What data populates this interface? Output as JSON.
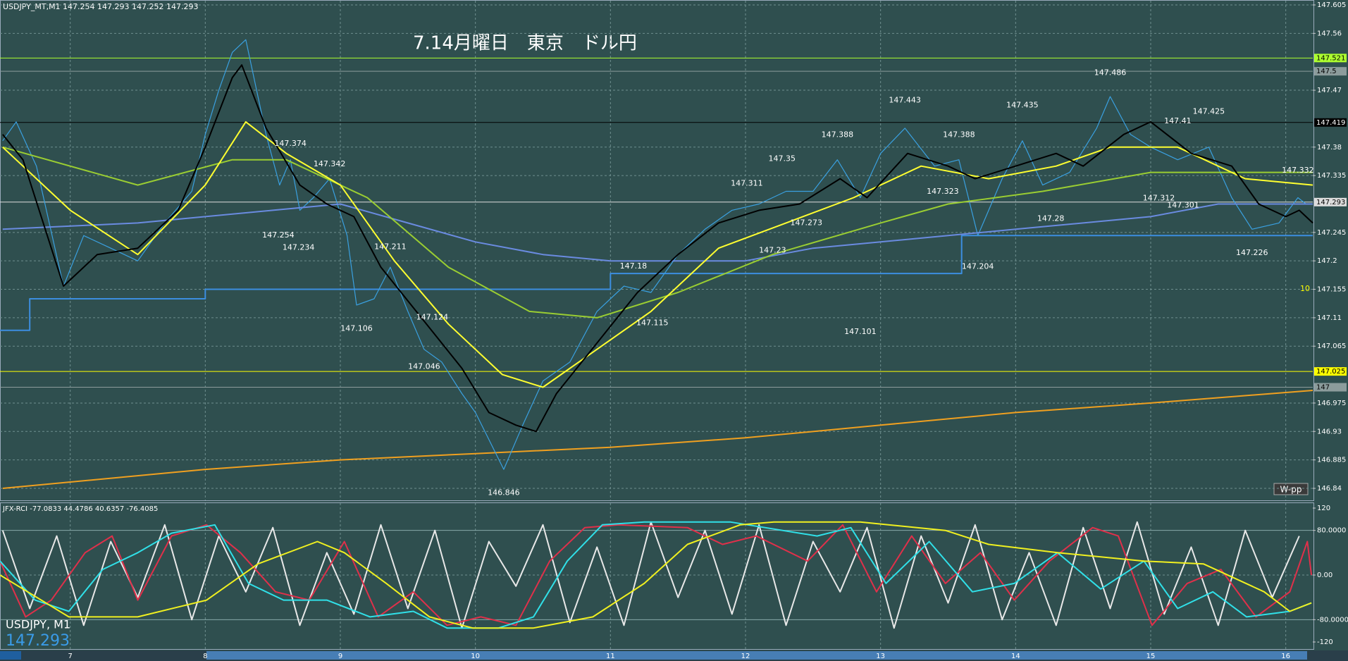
{
  "chart_data": [
    {
      "type": "line",
      "header": "USDJPY_MT,M1  147.254 147.293 147.252 147.293",
      "title": "7.14月曜日　東京　ドル円",
      "xlim": [
        6.48,
        16.2
      ],
      "xticks": [
        7,
        8,
        9,
        10,
        11,
        12,
        13,
        14,
        15,
        16
      ],
      "ylim": [
        146.84,
        147.605
      ],
      "yticks": [
        147.605,
        147.56,
        147.47,
        147.38,
        147.335,
        147.245,
        147.2,
        147.155,
        147.11,
        147.065,
        146.975,
        146.93,
        146.885,
        146.84
      ],
      "grid": true,
      "series": [
        {
          "color": "#f0a020",
          "x": [
            6.5,
            8.0,
            9.0,
            10.0,
            11.0,
            12.0,
            13.0,
            14.0,
            15.0,
            16.2
          ],
          "values": [
            146.84,
            146.87,
            146.885,
            146.895,
            146.905,
            146.92,
            146.94,
            146.96,
            146.975,
            146.995
          ]
        },
        {
          "color": "#3c8ee0",
          "x": [
            6.48,
            6.7,
            6.7,
            8.0,
            8.0,
            11.0,
            11.0,
            13.6,
            13.6,
            16.2
          ],
          "values": [
            147.09,
            147.09,
            147.14,
            147.14,
            147.155,
            147.155,
            147.18,
            147.18,
            147.24,
            147.24
          ]
        },
        {
          "color": "#3aa0e0",
          "x": [
            6.5,
            6.6,
            6.75,
            6.95,
            7.1,
            7.3,
            7.5,
            7.7,
            7.9,
            8.0,
            8.1,
            8.2,
            8.3,
            8.45,
            8.55,
            8.63,
            8.7,
            8.8,
            8.92,
            9.05,
            9.12,
            9.25,
            9.37,
            9.5,
            9.62,
            9.75,
            9.9,
            10.0,
            10.21,
            10.35,
            10.5,
            10.7,
            10.9,
            11.1,
            11.3,
            11.5,
            11.7,
            11.9,
            12.1,
            12.3,
            12.5,
            12.68,
            12.85,
            13.0,
            13.18,
            13.4,
            13.58,
            13.72,
            13.9,
            14.05,
            14.2,
            14.4,
            14.6,
            14.7,
            14.85,
            15.0,
            15.2,
            15.43,
            15.6,
            15.75,
            15.95,
            16.09,
            16.15
          ],
          "values": [
            147.39,
            147.42,
            147.35,
            147.16,
            147.24,
            147.22,
            147.2,
            147.26,
            147.31,
            147.4,
            147.47,
            147.53,
            147.55,
            147.4,
            147.32,
            147.36,
            147.28,
            147.3,
            147.33,
            147.24,
            147.13,
            147.14,
            147.19,
            147.12,
            147.06,
            147.04,
            146.99,
            146.96,
            146.87,
            146.94,
            147.01,
            147.04,
            147.12,
            147.16,
            147.15,
            147.21,
            147.25,
            147.28,
            147.29,
            147.31,
            147.31,
            147.36,
            147.3,
            147.37,
            147.41,
            147.35,
            147.36,
            147.24,
            147.33,
            147.39,
            147.32,
            147.34,
            147.41,
            147.46,
            147.4,
            147.38,
            147.36,
            147.38,
            147.3,
            147.25,
            147.26,
            147.3,
            147.29
          ]
        },
        {
          "color": "#6a8be0",
          "x": [
            6.5,
            7.5,
            8.5,
            9.0,
            9.5,
            10.0,
            10.5,
            11.0,
            11.5,
            12.0,
            12.5,
            13.0,
            13.5,
            14.0,
            15.0,
            15.5,
            16.2
          ],
          "values": [
            147.25,
            147.26,
            147.28,
            147.29,
            147.26,
            147.23,
            147.21,
            147.2,
            147.2,
            147.2,
            147.22,
            147.23,
            147.24,
            147.25,
            147.27,
            147.29,
            147.29
          ]
        },
        {
          "color": "#9acd32",
          "x": [
            6.5,
            7.5,
            8.2,
            8.6,
            9.2,
            9.8,
            10.4,
            10.9,
            11.5,
            12.2,
            13.0,
            13.5,
            14.2,
            15.0,
            15.5,
            16.2
          ],
          "values": [
            147.38,
            147.32,
            147.36,
            147.36,
            147.3,
            147.19,
            147.12,
            147.11,
            147.15,
            147.21,
            147.26,
            147.29,
            147.31,
            147.34,
            147.34,
            147.34
          ]
        },
        {
          "color": "#ffff30",
          "x": [
            6.5,
            7.0,
            7.5,
            8.0,
            8.3,
            8.6,
            9.0,
            9.4,
            9.8,
            10.2,
            10.5,
            10.9,
            11.3,
            11.8,
            12.3,
            12.8,
            13.3,
            13.8,
            14.3,
            14.7,
            15.2,
            15.7,
            16.2
          ],
          "values": [
            147.38,
            147.28,
            147.21,
            147.32,
            147.42,
            147.37,
            147.32,
            147.2,
            147.1,
            147.02,
            147.0,
            147.06,
            147.12,
            147.22,
            147.26,
            147.3,
            147.35,
            147.33,
            147.35,
            147.38,
            147.38,
            147.33,
            147.32
          ]
        },
        {
          "color": "#000000",
          "x": [
            6.5,
            6.65,
            6.95,
            7.2,
            7.5,
            7.8,
            8.0,
            8.2,
            8.27,
            8.45,
            8.7,
            8.9,
            9.1,
            9.3,
            9.6,
            9.9,
            10.1,
            10.3,
            10.45,
            10.6,
            10.9,
            11.2,
            11.5,
            11.8,
            12.1,
            12.4,
            12.7,
            12.9,
            13.2,
            13.5,
            13.7,
            14.0,
            14.3,
            14.5,
            14.8,
            15.0,
            15.3,
            15.6,
            15.8,
            16.0,
            16.1,
            16.2
          ],
          "values": [
            147.4,
            147.36,
            147.16,
            147.21,
            147.22,
            147.28,
            147.38,
            147.49,
            147.51,
            147.41,
            147.32,
            147.29,
            147.27,
            147.19,
            147.11,
            147.03,
            146.96,
            146.94,
            146.93,
            146.99,
            147.07,
            147.15,
            147.21,
            147.26,
            147.28,
            147.29,
            147.33,
            147.3,
            147.37,
            147.35,
            147.33,
            147.35,
            147.37,
            147.35,
            147.4,
            147.42,
            147.37,
            147.35,
            147.29,
            147.27,
            147.28,
            147.26
          ]
        }
      ],
      "highs": {
        "x": [
          8.63,
          8.92,
          9.37,
          11.17,
          12.01,
          12.27,
          12.68,
          13.18,
          13.58,
          14.05,
          14.7,
          15.2,
          15.43,
          16.09
        ],
        "values": [
          147.374,
          147.342,
          147.211,
          147.18,
          147.311,
          147.35,
          147.388,
          147.443,
          147.388,
          147.435,
          147.486,
          147.41,
          147.425,
          147.332
        ]
      },
      "lows": {
        "x": [
          8.54,
          8.69,
          9.12,
          9.68,
          9.62,
          10.21,
          11.31,
          12.2,
          12.45,
          12.85,
          13.46,
          13.72,
          14.26,
          15.06,
          15.24,
          15.75
        ],
        "values": [
          147.254,
          147.234,
          147.106,
          147.124,
          147.046,
          146.846,
          147.115,
          147.23,
          147.273,
          147.101,
          147.323,
          147.204,
          147.28,
          147.312,
          147.301,
          147.226
        ]
      },
      "hlines": {
        "values": [
          147.521,
          147.5,
          147.419,
          147.293,
          147.025,
          147.0
        ],
        "colors": [
          "#adff2f",
          "#8c9c9c",
          "#000000",
          "#dddddd",
          "#ffff00",
          "#8c9c9c"
        ]
      },
      "button": "W-pp",
      "annotation": "10"
    },
    {
      "type": "line",
      "header": "JFX-RCI -77.0833 44.4786 40.6357 -76.4085",
      "ylim": [
        -120,
        120
      ],
      "yticks": [
        120,
        {
          "value": 80,
          "label": "80.0000"
        },
        {
          "value": 0,
          "label": "0.00"
        },
        {
          "value": -80,
          "label": "-80.0000"
        },
        -120
      ],
      "series": [
        {
          "color": "#e8e8e8",
          "x": [
            6.5,
            6.7,
            6.9,
            7.1,
            7.3,
            7.5,
            7.7,
            7.9,
            8.1,
            8.3,
            8.5,
            8.7,
            8.9,
            9.1,
            9.3,
            9.5,
            9.7,
            9.9,
            10.1,
            10.3,
            10.5,
            10.7,
            10.9,
            11.1,
            11.3,
            11.5,
            11.7,
            11.9,
            12.1,
            12.3,
            12.5,
            12.7,
            12.9,
            13.1,
            13.3,
            13.5,
            13.7,
            13.9,
            14.1,
            14.3,
            14.5,
            14.7,
            14.9,
            15.1,
            15.3,
            15.5,
            15.7,
            15.9,
            16.1
          ],
          "values": [
            80,
            -60,
            70,
            -90,
            60,
            -40,
            90,
            -80,
            70,
            -30,
            85,
            -90,
            40,
            -70,
            90,
            -60,
            80,
            -95,
            60,
            -20,
            90,
            -85,
            50,
            -90,
            95,
            -40,
            80,
            -70,
            90,
            -90,
            60,
            -30,
            85,
            -95,
            70,
            -50,
            90,
            -80,
            40,
            -90,
            85,
            -60,
            95,
            -70,
            50,
            -90,
            80,
            -40,
            70
          ]
        },
        {
          "color": "#e0304a",
          "x": [
            6.48,
            6.67,
            6.86,
            7.11,
            7.31,
            7.5,
            7.75,
            8.01,
            8.26,
            8.52,
            8.77,
            9.03,
            9.28,
            9.54,
            9.79,
            10.04,
            10.3,
            10.55,
            10.81,
            11.06,
            11.57,
            11.83,
            12.08,
            12.46,
            12.72,
            12.97,
            13.23,
            13.48,
            13.74,
            13.99,
            14.25,
            14.57,
            14.76,
            15.01,
            15.27,
            15.52,
            15.78,
            16.03,
            16.16,
            16.19
          ],
          "values": [
            25,
            -75,
            -45,
            40,
            70,
            -45,
            70,
            90,
            40,
            -30,
            -45,
            60,
            -75,
            -30,
            -90,
            -75,
            -90,
            25,
            85,
            90,
            85,
            55,
            70,
            25,
            90,
            -30,
            70,
            -15,
            40,
            -45,
            25,
            85,
            70,
            -90,
            -15,
            10,
            -75,
            -30,
            60,
            0
          ]
        },
        {
          "color": "#30e0e8",
          "x": [
            6.48,
            6.74,
            6.99,
            7.24,
            7.5,
            7.75,
            8.07,
            8.32,
            8.58,
            8.9,
            9.22,
            9.54,
            9.79,
            10.17,
            10.43,
            10.68,
            10.94,
            11.25,
            11.89,
            12.53,
            12.78,
            13.04,
            13.36,
            13.68,
            13.99,
            14.31,
            14.63,
            14.95,
            15.2,
            15.46,
            15.71,
            16.03,
            16.19
          ],
          "values": [
            25,
            -45,
            -65,
            10,
            40,
            75,
            90,
            -15,
            -45,
            -45,
            -75,
            -65,
            -95,
            -95,
            -75,
            25,
            90,
            95,
            95,
            70,
            85,
            -15,
            60,
            -30,
            -15,
            40,
            -25,
            25,
            -60,
            -30,
            -75,
            -65,
            -50
          ]
        },
        {
          "color": "#f0f020",
          "x": [
            6.48,
            6.99,
            7.5,
            8.01,
            8.39,
            8.83,
            9.03,
            9.34,
            9.66,
            9.98,
            10.43,
            10.87,
            11.25,
            11.57,
            11.96,
            12.21,
            12.85,
            13.48,
            13.8,
            14.31,
            14.95,
            15.39,
            15.84,
            16.03,
            16.19
          ],
          "values": [
            0,
            -75,
            -75,
            -45,
            20,
            60,
            40,
            -15,
            -75,
            -95,
            -95,
            -75,
            -15,
            55,
            90,
            95,
            95,
            80,
            55,
            40,
            25,
            20,
            -30,
            -65,
            -50
          ]
        }
      ]
    }
  ],
  "footer": {
    "symbol": "USDJPY, M1",
    "price": 147.293
  }
}
